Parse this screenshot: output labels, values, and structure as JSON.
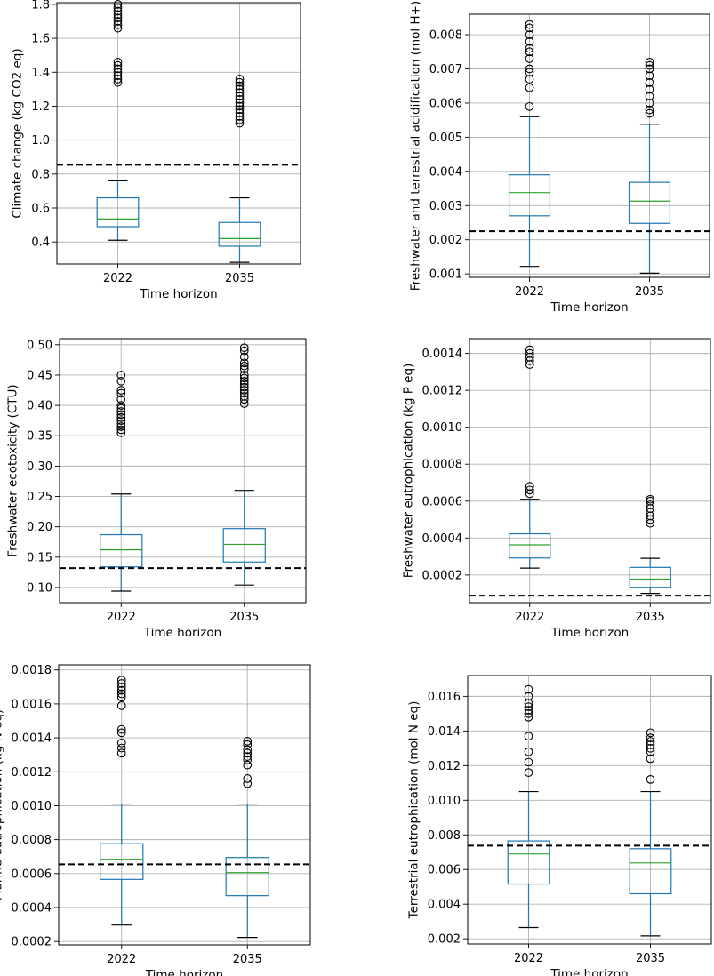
{
  "chart_data": [
    {
      "type": "box",
      "ylabel": "Climate change (kg CO2 eq)",
      "xlabel": "Time horizon",
      "categories": [
        "2022",
        "2035"
      ],
      "ylim": [
        0.27,
        1.81
      ],
      "yticks": [
        0.4,
        0.6,
        0.8,
        1.0,
        1.2,
        1.4,
        1.6,
        1.8
      ],
      "ytick_labels": [
        "0.4",
        "0.6",
        "0.8",
        "1.0",
        "1.2",
        "1.4",
        "1.6",
        "1.8"
      ],
      "reference_line": 0.855,
      "boxes": [
        {
          "category": "2022",
          "whisker_low": 0.41,
          "q1": 0.49,
          "median": 0.535,
          "q3": 0.66,
          "whisker_high": 0.76,
          "outliers": [
            1.34,
            1.36,
            1.38,
            1.4,
            1.42,
            1.44,
            1.46,
            1.66,
            1.68,
            1.7,
            1.72,
            1.74,
            1.76,
            1.78,
            1.8
          ]
        },
        {
          "category": "2035",
          "whisker_low": 0.28,
          "q1": 0.375,
          "median": 0.42,
          "q3": 0.515,
          "whisker_high": 0.66,
          "outliers": [
            1.1,
            1.12,
            1.14,
            1.16,
            1.18,
            1.2,
            1.22,
            1.24,
            1.26,
            1.28,
            1.3,
            1.32,
            1.34,
            1.36
          ]
        }
      ]
    },
    {
      "type": "box",
      "ylabel": "Freshwater and terrestrial acidification (mol H+)",
      "xlabel": "Time horizon",
      "categories": [
        "2022",
        "2035"
      ],
      "ylim": [
        0.0009,
        0.0086
      ],
      "yticks": [
        0.001,
        0.002,
        0.003,
        0.004,
        0.005,
        0.006,
        0.007,
        0.008
      ],
      "ytick_labels": [
        "0.001",
        "0.002",
        "0.003",
        "0.004",
        "0.005",
        "0.006",
        "0.007",
        "0.008"
      ],
      "reference_line": 0.00225,
      "boxes": [
        {
          "category": "2022",
          "whisker_low": 0.00122,
          "q1": 0.0027,
          "median": 0.00338,
          "q3": 0.0039,
          "whisker_high": 0.0056,
          "outliers": [
            0.0059,
            0.00645,
            0.0067,
            0.0069,
            0.007,
            0.0073,
            0.0075,
            0.0076,
            0.0078,
            0.008,
            0.0082,
            0.0083
          ]
        },
        {
          "category": "2035",
          "whisker_low": 0.00102,
          "q1": 0.00248,
          "median": 0.00313,
          "q3": 0.00368,
          "whisker_high": 0.00538,
          "outliers": [
            0.0057,
            0.0058,
            0.006,
            0.0062,
            0.0064,
            0.0066,
            0.0068,
            0.007,
            0.0071,
            0.0072
          ]
        }
      ]
    },
    {
      "type": "box",
      "ylabel": "Freshwater ecotoxicity (CTU)",
      "xlabel": "Time horizon",
      "categories": [
        "2022",
        "2035"
      ],
      "ylim": [
        0.075,
        0.51
      ],
      "yticks": [
        0.1,
        0.15,
        0.2,
        0.25,
        0.3,
        0.35,
        0.4,
        0.45,
        0.5
      ],
      "ytick_labels": [
        "0.10",
        "0.15",
        "0.20",
        "0.25",
        "0.30",
        "0.35",
        "0.40",
        "0.45",
        "0.50"
      ],
      "reference_line": 0.132,
      "boxes": [
        {
          "category": "2022",
          "whisker_low": 0.094,
          "q1": 0.134,
          "median": 0.162,
          "q3": 0.187,
          "whisker_high": 0.254,
          "outliers": [
            0.355,
            0.36,
            0.365,
            0.37,
            0.375,
            0.38,
            0.385,
            0.39,
            0.395,
            0.4,
            0.41,
            0.42,
            0.425,
            0.44,
            0.45
          ]
        },
        {
          "category": "2035",
          "whisker_low": 0.104,
          "q1": 0.142,
          "median": 0.171,
          "q3": 0.197,
          "whisker_high": 0.26,
          "outliers": [
            0.403,
            0.41,
            0.415,
            0.42,
            0.425,
            0.43,
            0.435,
            0.44,
            0.445,
            0.45,
            0.46,
            0.465,
            0.47,
            0.48,
            0.49,
            0.495
          ]
        }
      ]
    },
    {
      "type": "box",
      "ylabel": "Freshwater eutrophication (kg P eq)",
      "xlabel": "Time horizon",
      "categories": [
        "2022",
        "2035"
      ],
      "ylim": [
        5e-05,
        0.00148
      ],
      "yticks": [
        0.0002,
        0.0004,
        0.0006,
        0.0008,
        0.001,
        0.0012,
        0.0014
      ],
      "ytick_labels": [
        "0.0002",
        "0.0004",
        "0.0006",
        "0.0008",
        "0.0010",
        "0.0012",
        "0.0014"
      ],
      "reference_line": 8.8e-05,
      "boxes": [
        {
          "category": "2022",
          "whisker_low": 0.000237,
          "q1": 0.000292,
          "median": 0.000363,
          "q3": 0.000423,
          "whisker_high": 0.00061,
          "outliers": [
            0.00064,
            0.00066,
            0.00068,
            0.00134,
            0.00136,
            0.00138,
            0.0014,
            0.00142
          ]
        },
        {
          "category": "2035",
          "whisker_low": 0.0001,
          "q1": 0.000133,
          "median": 0.000178,
          "q3": 0.000241,
          "whisker_high": 0.00029,
          "outliers": [
            0.00048,
            0.0005,
            0.00052,
            0.00054,
            0.00056,
            0.00058,
            0.0006,
            0.00061
          ]
        }
      ]
    },
    {
      "type": "box",
      "ylabel": "Marine eutrophication (kg N eq)",
      "xlabel": "Time horizon",
      "categories": [
        "2022",
        "2035"
      ],
      "ylim": [
        0.00018,
        0.00183
      ],
      "yticks": [
        0.0002,
        0.0004,
        0.0006,
        0.0008,
        0.001,
        0.0012,
        0.0014,
        0.0016,
        0.0018
      ],
      "ytick_labels": [
        "0.0002",
        "0.0004",
        "0.0006",
        "0.0008",
        "0.0010",
        "0.0012",
        "0.0014",
        "0.0016",
        "0.0018"
      ],
      "reference_line": 0.000655,
      "boxes": [
        {
          "category": "2022",
          "whisker_low": 0.000297,
          "q1": 0.000566,
          "median": 0.000684,
          "q3": 0.000776,
          "whisker_high": 0.00101,
          "outliers": [
            0.00131,
            0.00134,
            0.00137,
            0.00143,
            0.00145,
            0.00159,
            0.00164,
            0.00166,
            0.00168,
            0.0017,
            0.00172,
            0.00174
          ]
        },
        {
          "category": "2035",
          "whisker_low": 0.000224,
          "q1": 0.00047,
          "median": 0.000606,
          "q3": 0.000695,
          "whisker_high": 0.00101,
          "outliers": [
            0.00113,
            0.00116,
            0.00124,
            0.00127,
            0.00129,
            0.00131,
            0.00133,
            0.00136,
            0.00138
          ]
        }
      ]
    },
    {
      "type": "box",
      "ylabel": "Terrestrial eutrophication (mol N eq)",
      "xlabel": "Time horizon",
      "categories": [
        "2022",
        "2035"
      ],
      "ylim": [
        0.0017,
        0.0172
      ],
      "yticks": [
        0.002,
        0.004,
        0.006,
        0.008,
        0.01,
        0.012,
        0.014,
        0.016
      ],
      "ytick_labels": [
        "0.002",
        "0.004",
        "0.006",
        "0.008",
        "0.010",
        "0.012",
        "0.014",
        "0.016"
      ],
      "reference_line": 0.00738,
      "boxes": [
        {
          "category": "2022",
          "whisker_low": 0.00265,
          "q1": 0.00516,
          "median": 0.0069,
          "q3": 0.00765,
          "whisker_high": 0.0105,
          "outliers": [
            0.0116,
            0.0122,
            0.0128,
            0.0137,
            0.0148,
            0.015,
            0.0152,
            0.0154,
            0.0156,
            0.016,
            0.0164
          ]
        },
        {
          "category": "2035",
          "whisker_low": 0.00217,
          "q1": 0.0046,
          "median": 0.00638,
          "q3": 0.0072,
          "whisker_high": 0.0105,
          "outliers": [
            0.0112,
            0.0124,
            0.0128,
            0.013,
            0.0132,
            0.0134,
            0.0136,
            0.0139
          ]
        }
      ]
    }
  ]
}
